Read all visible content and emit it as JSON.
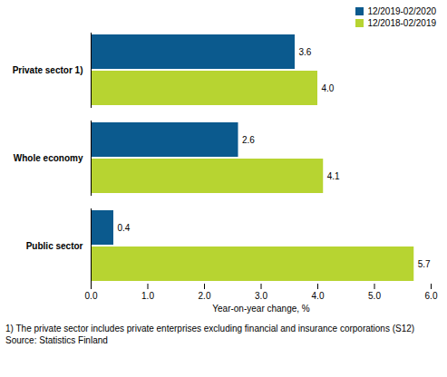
{
  "chart_data": {
    "type": "bar",
    "orientation": "horizontal",
    "categories": [
      "Private sector 1)",
      "Whole economy",
      "Public sector"
    ],
    "series": [
      {
        "name": "12/2019-02/2020",
        "color": "#0b5a8e",
        "values": [
          3.6,
          2.6,
          0.4
        ],
        "value_labels": [
          "3.6",
          "2.6",
          "0.4"
        ]
      },
      {
        "name": "12/2018-02/2019",
        "color": "#b7d431",
        "values": [
          4.0,
          4.1,
          5.7
        ],
        "value_labels": [
          "4.0",
          "4.1",
          "5.7"
        ]
      }
    ],
    "x_label": "Year-on-year change, %",
    "xlim": [
      0,
      6
    ],
    "xticks": [
      0,
      1,
      2,
      3,
      4,
      5,
      6
    ],
    "grid": false,
    "legend": "upper right",
    "data_labels": true,
    "footnote": "1) The private sector includes private enterprises excluding financial and insurance corporations (S12)",
    "source": "Source: Statistics Finland"
  }
}
